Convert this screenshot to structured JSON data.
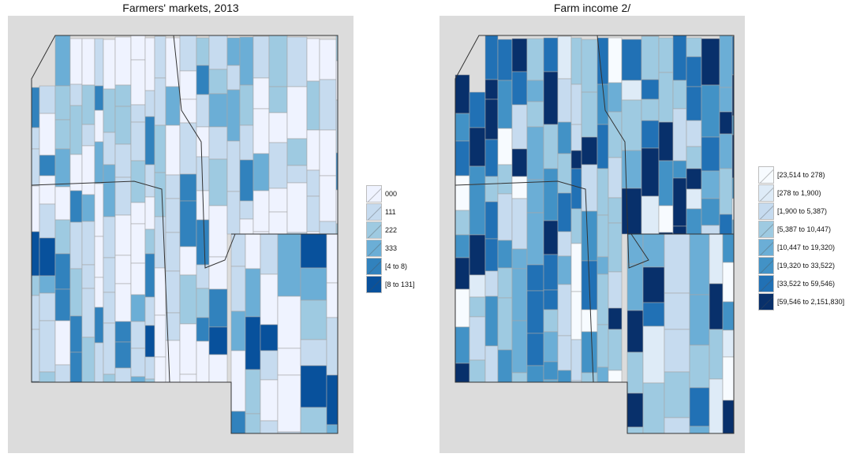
{
  "left_map": {
    "title": "Farmers' markets, 2013",
    "legend": [
      {
        "label": "000",
        "color": "#eff3ff"
      },
      {
        "label": "111",
        "color": "#c6dbef"
      },
      {
        "label": "222",
        "color": "#9ecae1"
      },
      {
        "label": "333",
        "color": "#6baed6"
      },
      {
        "label": "[4 to 8)",
        "color": "#3182bd"
      },
      {
        "label": "[8 to 131]",
        "color": "#08519c"
      }
    ]
  },
  "right_map": {
    "title": "Farm income 2/",
    "legend": [
      {
        "label": "[23,514 to 278)",
        "color": "#f7fbff"
      },
      {
        "label": "[278 to 1,900)",
        "color": "#deebf7"
      },
      {
        "label": "[1,900 to 5,387)",
        "color": "#c6dbef"
      },
      {
        "label": "[5,387 to 10,447)",
        "color": "#9ecae1"
      },
      {
        "label": "[10,447 to 19,320)",
        "color": "#6baed6"
      },
      {
        "label": "[19,320 to 33,522)",
        "color": "#4292c6"
      },
      {
        "label": "[33,522 to 59,546)",
        "color": "#2171b5"
      },
      {
        "label": "[59,546 to 2,151,830]",
        "color": "#08306b"
      }
    ]
  }
}
